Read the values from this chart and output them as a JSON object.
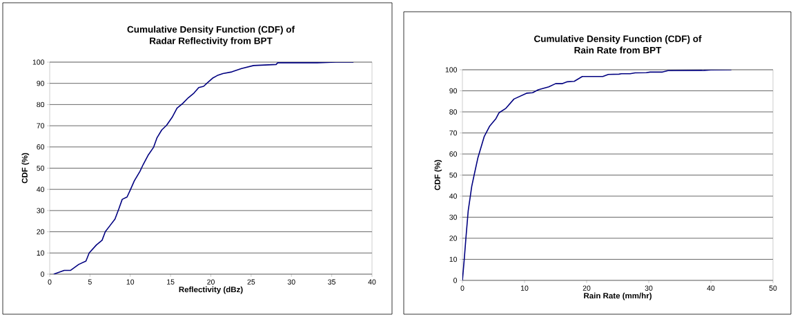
{
  "chart_data": [
    {
      "type": "line",
      "title": "Cumulative Density Function (CDF) of Radar Reflectivity from BPT",
      "xlabel": "Reflectivity (dBz)",
      "ylabel": "CDF (%)",
      "xlim": [
        0,
        40
      ],
      "xticks": [
        0,
        5,
        10,
        15,
        20,
        25,
        30,
        35,
        40
      ],
      "ylim": [
        0,
        100
      ],
      "yticks": [
        0,
        10,
        20,
        30,
        40,
        50,
        60,
        70,
        80,
        90,
        100
      ],
      "grid": "y",
      "marker": "none",
      "line_style": "solid",
      "series": [
        {
          "color": "#000080",
          "x": [
            0.5,
            1.8,
            2.6,
            3.6,
            4.5,
            4.9,
            5.8,
            6.5,
            6.9,
            7.5,
            8.1,
            8.6,
            9.0,
            9.6,
            10.0,
            10.5,
            11.2,
            11.6,
            12.2,
            12.9,
            13.3,
            13.9,
            14.5,
            15.2,
            15.8,
            16.5,
            17.2,
            17.9,
            18.5,
            19.1,
            19.5,
            20.2,
            20.8,
            21.5,
            22.6,
            23.8,
            25.3,
            28.1,
            28.3,
            33.2,
            35.5,
            37.7
          ],
          "values": [
            0,
            1.8,
            1.8,
            4.6,
            6.2,
            10,
            13.8,
            16,
            20,
            23,
            26,
            31,
            35.3,
            36.4,
            39.7,
            44,
            48.5,
            51.7,
            56,
            59.9,
            64.2,
            68,
            70.2,
            74,
            78.3,
            80.5,
            83.2,
            85.4,
            88,
            88.6,
            90,
            92.4,
            93.7,
            94.6,
            95.4,
            97,
            98.4,
            98.9,
            99.7,
            99.7,
            100,
            100
          ]
        }
      ]
    },
    {
      "type": "line",
      "title": "Cumulative Density Function (CDF) of Rain Rate from BPT",
      "xlabel": "Rain Rate (mm/hr)",
      "ylabel": "CDF (%)",
      "xlim": [
        0,
        50
      ],
      "xticks": [
        0,
        10,
        20,
        30,
        40,
        50
      ],
      "ylim": [
        0,
        100
      ],
      "yticks": [
        0,
        10,
        20,
        30,
        40,
        50,
        60,
        70,
        80,
        90,
        100
      ],
      "grid": "y",
      "marker": "none",
      "line_style": "solid",
      "series": [
        {
          "color": "#000080",
          "x": [
            0,
            0.3,
            0.56,
            0.93,
            1.5,
            1.85,
            2.5,
            3.5,
            4.4,
            5.4,
            5.9,
            7.0,
            8.3,
            10.4,
            11.3,
            12.2,
            13.9,
            15,
            16.1,
            16.9,
            18,
            19.3,
            22.6,
            23.5,
            25.2,
            25.6,
            27,
            27.8,
            29.6,
            30.2,
            32.2,
            33.1,
            38.9,
            40,
            43.3
          ],
          "values": [
            0,
            10.2,
            20,
            33,
            44.6,
            49.5,
            58.3,
            68.2,
            73.3,
            76.8,
            79.6,
            81.7,
            86.1,
            88.9,
            89.1,
            90.5,
            91.9,
            93.4,
            93.4,
            94.3,
            94.5,
            96.8,
            96.8,
            97.8,
            97.9,
            98.1,
            98.1,
            98.5,
            98.6,
            98.9,
            98.9,
            99.6,
            99.7,
            99.9,
            100
          ]
        }
      ]
    }
  ]
}
